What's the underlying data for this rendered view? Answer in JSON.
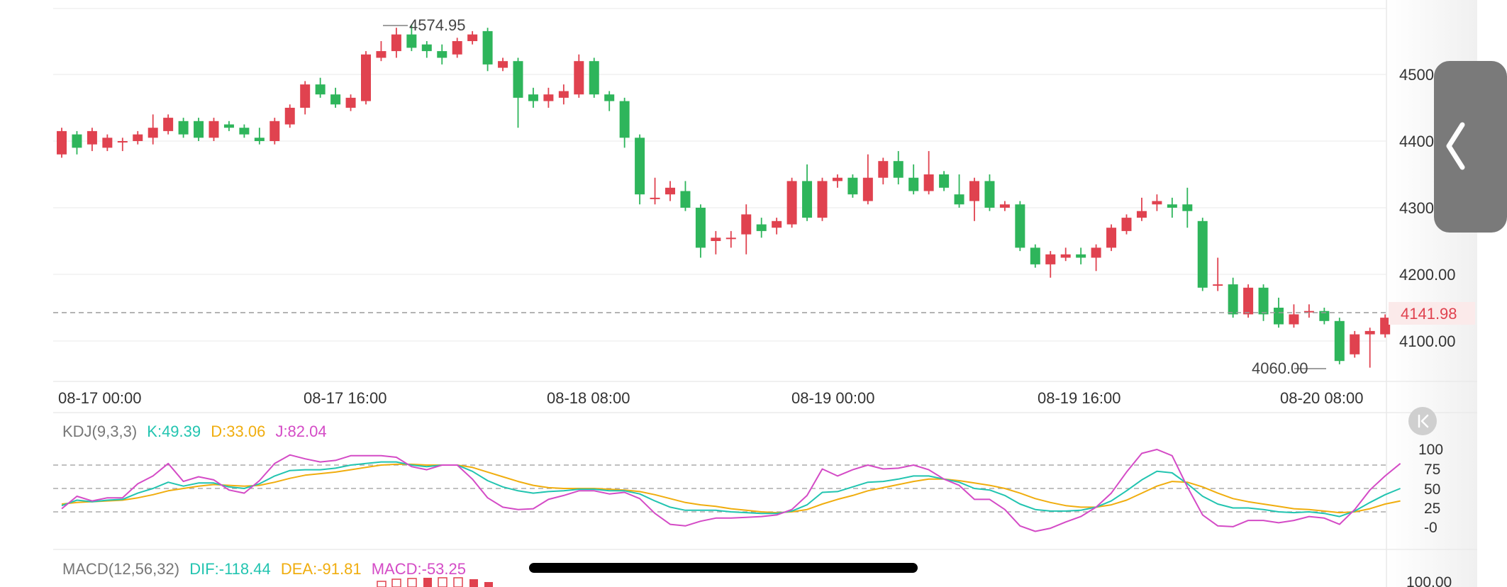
{
  "colors": {
    "up": "#e0424f",
    "down": "#2eb55b",
    "k": "#22c4b0",
    "d": "#f0ad0e",
    "j": "#d44bc6",
    "grid": "#eeeeee",
    "dashed": "#9a9a9a"
  },
  "price_labels": {
    "high": "4574.95",
    "low": "4060.00",
    "last": "4141.98"
  },
  "xaxis_labels": [
    "08-17 00:00",
    "08-17 16:00",
    "08-18 08:00",
    "08-19 00:00",
    "08-19 16:00",
    "08-20 08:00"
  ],
  "yaxis_labels": [
    "4500",
    "4400",
    "4300",
    "4200.00",
    "4100.00"
  ],
  "kdj": {
    "name": "KDJ(9,3,3)",
    "k": "K:49.39",
    "d": "D:33.06",
    "j": "J:82.04",
    "axis": [
      "100",
      "75",
      "50",
      "25",
      "-0"
    ]
  },
  "macd": {
    "name": "MACD(12,56,32)",
    "dif": "DIF:-118.44",
    "dea": "DEA:-91.81",
    "macd": "MACD:-53.25",
    "axis_top": "100.00"
  },
  "icons": {
    "collapse": "chevron-left-icon",
    "jump_latest": "jump-to-latest-icon"
  },
  "chart_data": {
    "type": "candlestick",
    "ylim": [
      4060,
      4575
    ],
    "candles": [
      [
        4380,
        4415,
        4375,
        4420
      ],
      [
        4410,
        4390,
        4380,
        4415
      ],
      [
        4395,
        4415,
        4385,
        4420
      ],
      [
        4390,
        4405,
        4385,
        4410
      ],
      [
        4400,
        4400,
        4385,
        4405
      ],
      [
        4400,
        4410,
        4395,
        4415
      ],
      [
        4405,
        4420,
        4395,
        4440
      ],
      [
        4415,
        4435,
        4410,
        4440
      ],
      [
        4430,
        4410,
        4405,
        4435
      ],
      [
        4430,
        4405,
        4400,
        4435
      ],
      [
        4405,
        4430,
        4400,
        4435
      ],
      [
        4425,
        4420,
        4415,
        4430
      ],
      [
        4420,
        4410,
        4405,
        4425
      ],
      [
        4405,
        4400,
        4395,
        4420
      ],
      [
        4400,
        4430,
        4395,
        4435
      ],
      [
        4425,
        4450,
        4420,
        4455
      ],
      [
        4450,
        4485,
        4440,
        4490
      ],
      [
        4485,
        4470,
        4465,
        4495
      ],
      [
        4470,
        4455,
        4450,
        4480
      ],
      [
        4450,
        4465,
        4445,
        4470
      ],
      [
        4460,
        4530,
        4455,
        4535
      ],
      [
        4525,
        4535,
        4520,
        4550
      ],
      [
        4535,
        4560,
        4525,
        4570
      ],
      [
        4560,
        4540,
        4535,
        4575
      ],
      [
        4545,
        4535,
        4525,
        4550
      ],
      [
        4535,
        4525,
        4515,
        4545
      ],
      [
        4530,
        4550,
        4525,
        4555
      ],
      [
        4550,
        4560,
        4545,
        4565
      ],
      [
        4565,
        4515,
        4505,
        4570
      ],
      [
        4510,
        4520,
        4505,
        4525
      ],
      [
        4520,
        4465,
        4420,
        4525
      ],
      [
        4470,
        4460,
        4450,
        4480
      ],
      [
        4460,
        4470,
        4450,
        4480
      ],
      [
        4465,
        4475,
        4455,
        4485
      ],
      [
        4470,
        4520,
        4465,
        4530
      ],
      [
        4520,
        4470,
        4465,
        4525
      ],
      [
        4470,
        4460,
        4445,
        4475
      ],
      [
        4460,
        4405,
        4390,
        4465
      ],
      [
        4405,
        4320,
        4305,
        4410
      ],
      [
        4315,
        4315,
        4305,
        4345
      ],
      [
        4320,
        4330,
        4310,
        4340
      ],
      [
        4325,
        4300,
        4295,
        4340
      ],
      [
        4300,
        4240,
        4225,
        4305
      ],
      [
        4250,
        4255,
        4230,
        4265
      ],
      [
        4255,
        4255,
        4240,
        4265
      ],
      [
        4260,
        4290,
        4230,
        4305
      ],
      [
        4275,
        4265,
        4255,
        4285
      ],
      [
        4270,
        4280,
        4260,
        4285
      ],
      [
        4275,
        4340,
        4270,
        4345
      ],
      [
        4340,
        4285,
        4280,
        4365
      ],
      [
        4285,
        4340,
        4280,
        4345
      ],
      [
        4340,
        4345,
        4330,
        4350
      ],
      [
        4345,
        4320,
        4315,
        4350
      ],
      [
        4310,
        4345,
        4305,
        4380
      ],
      [
        4345,
        4370,
        4335,
        4375
      ],
      [
        4370,
        4345,
        4335,
        4385
      ],
      [
        4345,
        4325,
        4320,
        4365
      ],
      [
        4325,
        4350,
        4320,
        4385
      ],
      [
        4350,
        4330,
        4325,
        4355
      ],
      [
        4320,
        4305,
        4300,
        4350
      ],
      [
        4310,
        4340,
        4280,
        4345
      ],
      [
        4340,
        4300,
        4295,
        4350
      ],
      [
        4300,
        4305,
        4295,
        4310
      ],
      [
        4305,
        4240,
        4235,
        4310
      ],
      [
        4240,
        4215,
        4210,
        4245
      ],
      [
        4215,
        4230,
        4195,
        4235
      ],
      [
        4225,
        4230,
        4220,
        4240
      ],
      [
        4230,
        4225,
        4215,
        4240
      ],
      [
        4225,
        4240,
        4205,
        4245
      ],
      [
        4240,
        4270,
        4235,
        4275
      ],
      [
        4265,
        4285,
        4260,
        4290
      ],
      [
        4285,
        4295,
        4280,
        4315
      ],
      [
        4305,
        4310,
        4295,
        4320
      ],
      [
        4305,
        4300,
        4285,
        4315
      ],
      [
        4305,
        4295,
        4270,
        4330
      ],
      [
        4280,
        4180,
        4175,
        4285
      ],
      [
        4185,
        4185,
        4175,
        4225
      ],
      [
        4185,
        4140,
        4135,
        4195
      ],
      [
        4140,
        4180,
        4135,
        4185
      ],
      [
        4180,
        4140,
        4130,
        4185
      ],
      [
        4150,
        4125,
        4120,
        4165
      ],
      [
        4125,
        4140,
        4120,
        4155
      ],
      [
        4145,
        4145,
        4135,
        4155
      ],
      [
        4145,
        4130,
        4125,
        4150
      ],
      [
        4130,
        4070,
        4065,
        4135
      ],
      [
        4080,
        4110,
        4075,
        4115
      ],
      [
        4110,
        4115,
        4060,
        4120
      ],
      [
        4110,
        4135,
        4105,
        4140
      ],
      [
        4140,
        4145,
        4135,
        4155
      ]
    ],
    "kdj_k": [
      28,
      35,
      33,
      35,
      36,
      44,
      50,
      58,
      53,
      57,
      57,
      52,
      50,
      56,
      66,
      73,
      74,
      74,
      76,
      80,
      82,
      84,
      84,
      80,
      78,
      80,
      80,
      72,
      60,
      52,
      47,
      44,
      46,
      47,
      49,
      49,
      47,
      47,
      43,
      34,
      26,
      22,
      22,
      22,
      20,
      19,
      18,
      18,
      21,
      29,
      45,
      46,
      52,
      58,
      59,
      62,
      66,
      66,
      62,
      58,
      50,
      48,
      41,
      30,
      23,
      21,
      21,
      22,
      26,
      34,
      47,
      61,
      72,
      70,
      56,
      40,
      30,
      25,
      25,
      23,
      20,
      19,
      20,
      18,
      14,
      21,
      32,
      42,
      50
    ],
    "kdj_d": [
      30,
      32,
      33,
      34,
      35,
      38,
      42,
      47,
      50,
      53,
      55,
      54,
      53,
      54,
      58,
      63,
      67,
      69,
      71,
      74,
      77,
      80,
      81,
      81,
      80,
      80,
      80,
      77,
      71,
      65,
      59,
      54,
      51,
      50,
      50,
      50,
      49,
      48,
      46,
      42,
      37,
      32,
      29,
      27,
      24,
      22,
      20,
      19,
      20,
      23,
      30,
      36,
      41,
      47,
      51,
      55,
      59,
      62,
      62,
      60,
      57,
      54,
      50,
      44,
      37,
      32,
      28,
      26,
      26,
      29,
      35,
      44,
      53,
      59,
      58,
      52,
      44,
      37,
      33,
      30,
      27,
      24,
      23,
      21,
      19,
      20,
      24,
      30,
      34
    ],
    "kdj_j": [
      24,
      40,
      34,
      38,
      38,
      56,
      66,
      82,
      59,
      65,
      61,
      48,
      44,
      60,
      82,
      93,
      88,
      84,
      86,
      92,
      92,
      92,
      90,
      78,
      74,
      80,
      80,
      62,
      38,
      26,
      23,
      24,
      36,
      41,
      47,
      47,
      43,
      45,
      37,
      18,
      4,
      2,
      8,
      12,
      12,
      13,
      14,
      16,
      23,
      41,
      75,
      66,
      74,
      80,
      75,
      76,
      80,
      74,
      62,
      54,
      36,
      36,
      23,
      2,
      -5,
      -1,
      7,
      14,
      26,
      44,
      71,
      95,
      100,
      92,
      52,
      16,
      2,
      1,
      9,
      9,
      6,
      9,
      14,
      12,
      4,
      23,
      48,
      66,
      82
    ]
  }
}
